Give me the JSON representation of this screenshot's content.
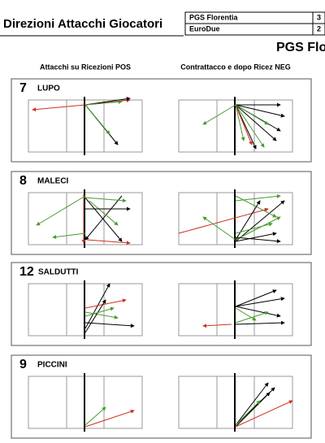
{
  "header": {
    "title": "Direzioni Attacchi Giocatori",
    "score_table": {
      "rows": [
        [
          "PGS Florentia",
          "3"
        ],
        [
          "EuroDue",
          "2"
        ]
      ]
    }
  },
  "team_heading": "PGS Flor",
  "columns": [
    "Attacchi su Ricezioni POS",
    "Contrattacco e dopo Ricez NEG"
  ],
  "players": [
    {
      "number": "7",
      "name": "LUPO"
    },
    {
      "number": "8",
      "name": "MALECI"
    },
    {
      "number": "12",
      "name": "SALDUTTI"
    },
    {
      "number": "9",
      "name": "PICCINI"
    }
  ]
}
